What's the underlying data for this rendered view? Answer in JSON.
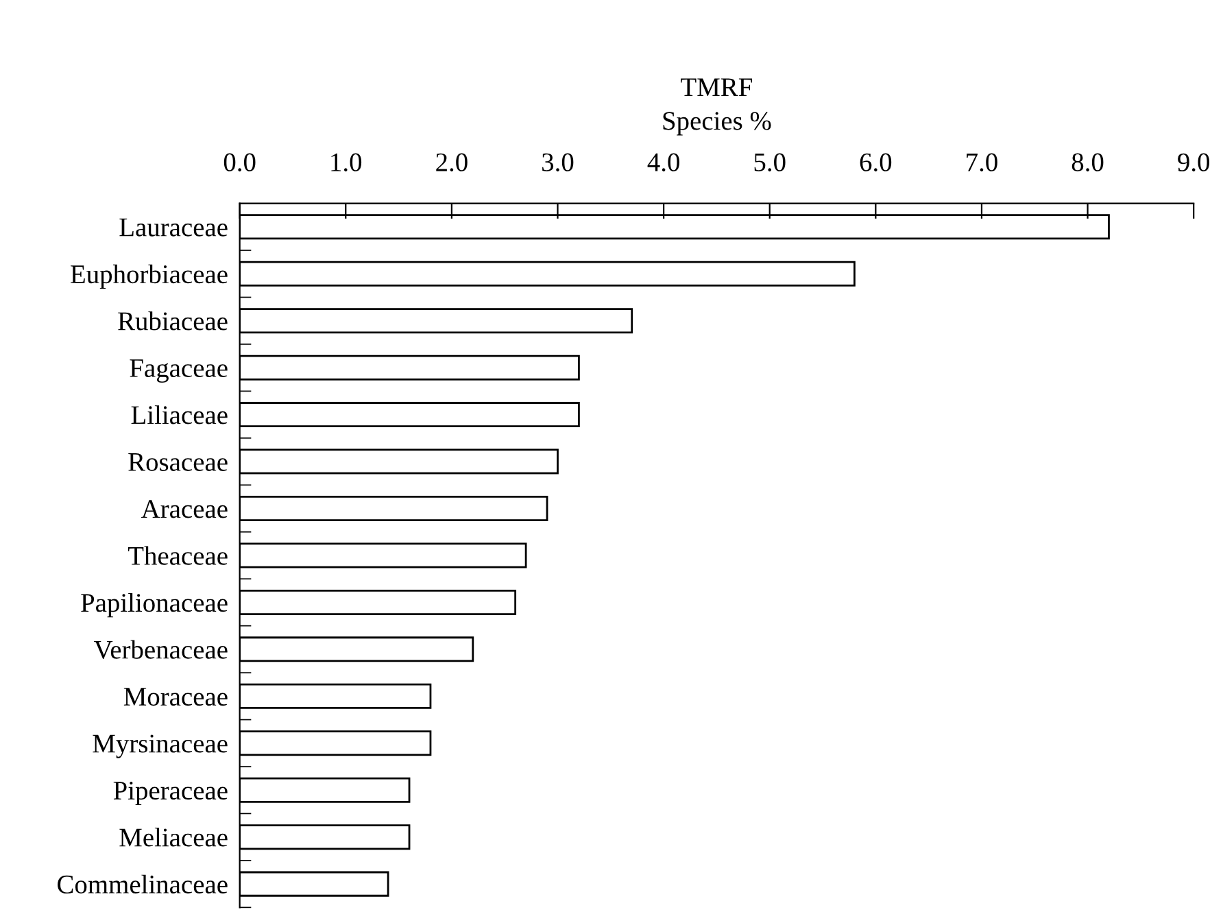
{
  "chart_data": {
    "type": "bar",
    "orientation": "horizontal",
    "title": "TMRF",
    "xlabel": "Species %",
    "categories": [
      "Lauraceae",
      "Euphorbiaceae",
      "Rubiaceae",
      "Fagaceae",
      "Liliaceae",
      "Rosaceae",
      "Araceae",
      "Theaceae",
      "Papilionaceae",
      "Verbenaceae",
      "Moraceae",
      "Myrsinaceae",
      "Piperaceae",
      "Meliaceae",
      "Commelinaceae"
    ],
    "values": [
      8.2,
      5.8,
      3.7,
      3.2,
      3.2,
      3.0,
      2.9,
      2.7,
      2.6,
      2.2,
      1.8,
      1.8,
      1.6,
      1.6,
      1.4
    ],
    "color": "#ffffff",
    "xlim": [
      0,
      9
    ],
    "xticks": [
      {
        "value": 0,
        "label": "0.0"
      },
      {
        "value": 1,
        "label": "1.0"
      },
      {
        "value": 2,
        "label": "2.0"
      },
      {
        "value": 3,
        "label": "3.0"
      },
      {
        "value": 4,
        "label": "4.0"
      },
      {
        "value": 5,
        "label": "5.0"
      },
      {
        "value": 6,
        "label": "6.0"
      },
      {
        "value": 7,
        "label": "7.0"
      },
      {
        "value": 8,
        "label": "8.0"
      },
      {
        "value": 9,
        "label": "9.0"
      }
    ],
    "grid": false,
    "legend": false
  }
}
